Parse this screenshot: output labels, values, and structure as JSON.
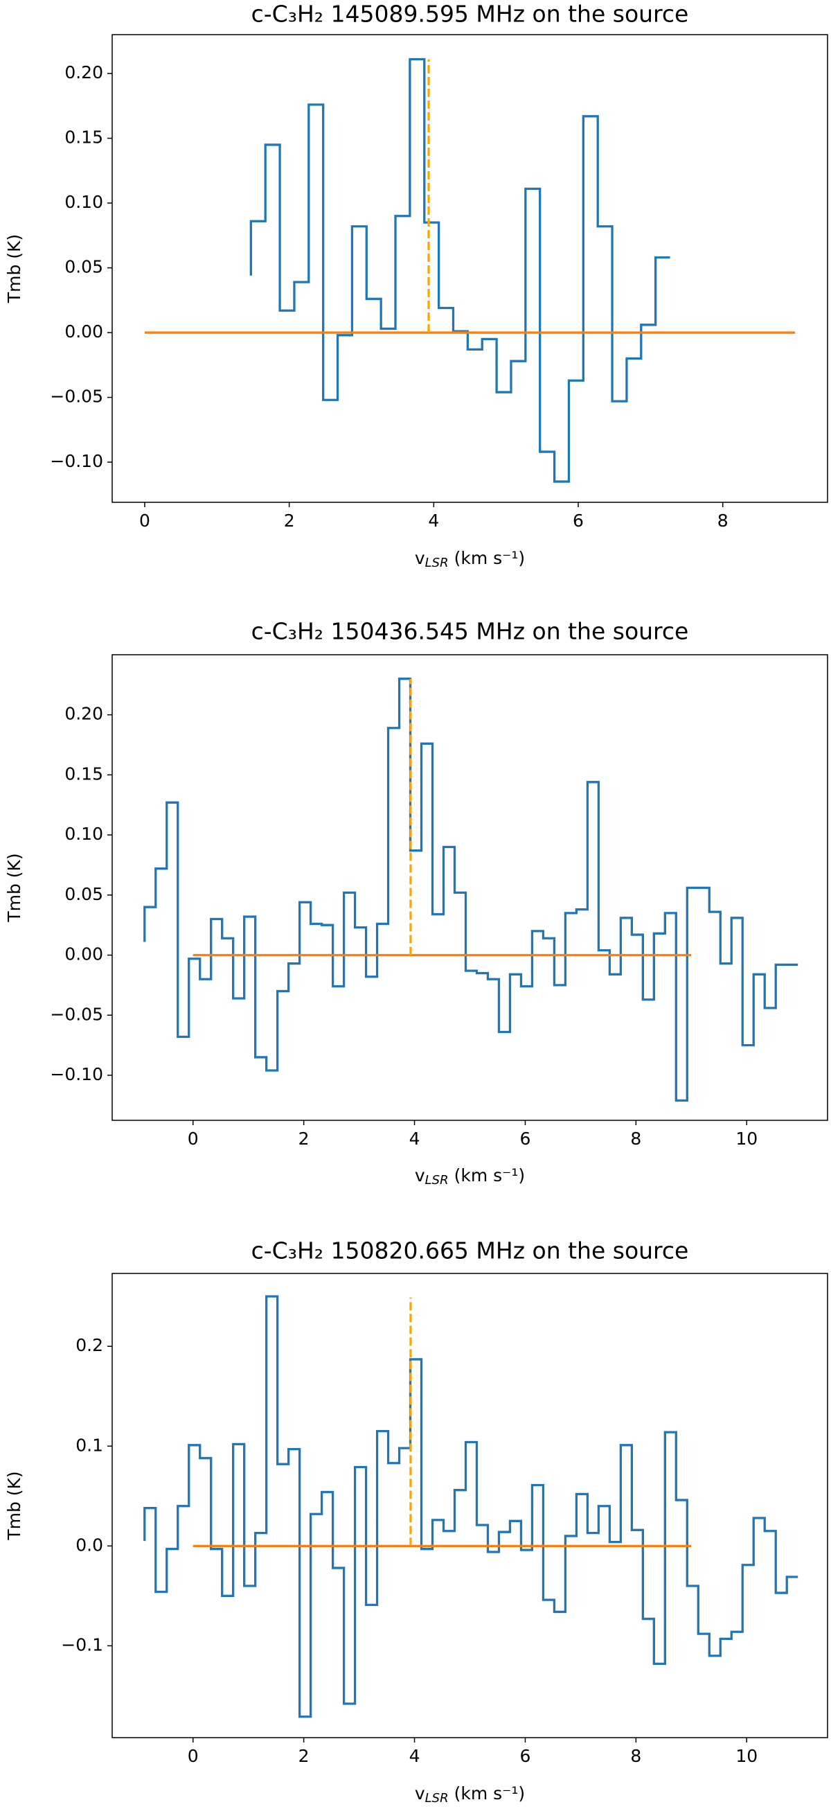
{
  "chart_data": [
    {
      "type": "step",
      "title": "c-C₃H₂ 145089.595 MHz on the source",
      "xlabel": [
        "v",
        "LSR",
        "(km s⁻¹)"
      ],
      "ylabel": "Tmb (K)",
      "x0": 1.47,
      "dx": 0.2,
      "values": [
        0.044,
        0.086,
        0.145,
        0.017,
        0.039,
        0.176,
        -0.052,
        -0.002,
        0.082,
        0.026,
        0.003,
        0.09,
        0.211,
        0.085,
        0.019,
        0.001,
        -0.013,
        -0.005,
        -0.046,
        -0.022,
        0.111,
        -0.092,
        -0.115,
        -0.037,
        0.167,
        0.082,
        -0.053,
        -0.02,
        0.006,
        0.058
      ],
      "color": "#1f77b4",
      "baseline": {
        "x": [
          0,
          9
        ],
        "y": 0,
        "color": "#ff7f0e"
      },
      "marker": {
        "x": 3.93,
        "y": [
          0,
          0.211
        ],
        "color": "#ffa500"
      },
      "xlim": [
        -0.45,
        9.45
      ],
      "ylim": [
        -0.131,
        0.23
      ],
      "xticks": [
        0,
        2,
        4,
        6,
        8
      ],
      "yticks": [
        {
          "value": -0.1,
          "label": "−0.10"
        },
        {
          "value": -0.05,
          "label": "−0.05"
        },
        {
          "value": 0,
          "label": "0.00"
        },
        {
          "value": 0.05,
          "label": "0.05"
        },
        {
          "value": 0.1,
          "label": "0.10"
        },
        {
          "value": 0.15,
          "label": "0.15"
        },
        {
          "value": 0.2,
          "label": "0.20"
        }
      ]
    },
    {
      "type": "step",
      "title": "c-C₃H₂ 150436.545 MHz on the source",
      "xlabel": [
        "v",
        "LSR",
        "(km s⁻¹)"
      ],
      "ylabel": "Tmb (K)",
      "x0": -0.875,
      "dx": 0.2,
      "values": [
        0.011,
        0.04,
        0.072,
        0.127,
        -0.068,
        -0.003,
        -0.02,
        0.03,
        0.014,
        -0.036,
        0.032,
        -0.085,
        -0.096,
        -0.03,
        -0.007,
        0.044,
        0.026,
        0.025,
        -0.026,
        0.052,
        0.023,
        -0.018,
        0.026,
        0.189,
        0.23,
        0.087,
        0.176,
        0.034,
        0.09,
        0.052,
        -0.013,
        -0.015,
        -0.02,
        -0.064,
        -0.016,
        -0.026,
        0.02,
        0.014,
        -0.025,
        0.035,
        0.038,
        0.144,
        0.004,
        -0.016,
        0.031,
        0.017,
        -0.037,
        0.018,
        0.035,
        -0.121,
        0.056,
        0.056,
        0.036,
        -0.007,
        0.031,
        -0.075,
        -0.016,
        -0.044,
        -0.008,
        -0.008
      ],
      "color": "#1f77b4",
      "baseline": {
        "x": [
          0,
          9
        ],
        "y": 0,
        "color": "#ff7f0e"
      },
      "marker": {
        "x": 3.93,
        "y": [
          0,
          0.23
        ],
        "color": "#ffa500"
      },
      "xlim": [
        -1.46,
        11.46
      ],
      "ylim": [
        -0.1375,
        0.25
      ],
      "xticks": [
        0,
        2,
        4,
        6,
        8,
        10
      ],
      "yticks": [
        {
          "value": -0.1,
          "label": "−0.10"
        },
        {
          "value": -0.05,
          "label": "−0.05"
        },
        {
          "value": 0,
          "label": "0.00"
        },
        {
          "value": 0.05,
          "label": "0.05"
        },
        {
          "value": 0.1,
          "label": "0.10"
        },
        {
          "value": 0.15,
          "label": "0.15"
        },
        {
          "value": 0.2,
          "label": "0.20"
        }
      ]
    },
    {
      "type": "step",
      "title": "c-C₃H₂ 150820.665 MHz on the source",
      "xlabel": [
        "v",
        "LSR",
        "(km s⁻¹)"
      ],
      "ylabel": "Tmb (K)",
      "x0": -0.875,
      "dx": 0.2,
      "values": [
        0.005,
        0.038,
        -0.046,
        -0.003,
        0.04,
        0.101,
        0.088,
        -0.003,
        -0.05,
        0.102,
        -0.04,
        0.013,
        0.25,
        0.082,
        0.097,
        -0.171,
        0.032,
        0.054,
        -0.022,
        -0.158,
        0.079,
        -0.059,
        0.115,
        0.083,
        0.098,
        0.187,
        -0.003,
        0.026,
        0.015,
        0.056,
        0.104,
        0.021,
        -0.006,
        0.014,
        0.025,
        -0.004,
        0.061,
        -0.054,
        -0.066,
        0.01,
        0.052,
        0.013,
        0.04,
        0.004,
        0.101,
        0.016,
        -0.073,
        -0.118,
        0.114,
        0.046,
        -0.04,
        -0.088,
        -0.11,
        -0.093,
        -0.086,
        -0.019,
        0.028,
        0.015,
        -0.047,
        -0.031
      ],
      "color": "#1f77b4",
      "baseline": {
        "x": [
          0,
          9
        ],
        "y": 0,
        "color": "#ff7f0e"
      },
      "marker": {
        "x": 3.93,
        "y": [
          0,
          0.249
        ],
        "color": "#ffa500"
      },
      "xlim": [
        -1.46,
        11.46
      ],
      "ylim": [
        -0.192,
        0.273
      ],
      "xticks": [
        0,
        2,
        4,
        6,
        8,
        10
      ],
      "yticks": [
        {
          "value": -0.1,
          "label": "−0.1"
        },
        {
          "value": 0,
          "label": "0.0"
        },
        {
          "value": 0.1,
          "label": "0.1"
        },
        {
          "value": 0.2,
          "label": "0.2"
        }
      ]
    }
  ]
}
